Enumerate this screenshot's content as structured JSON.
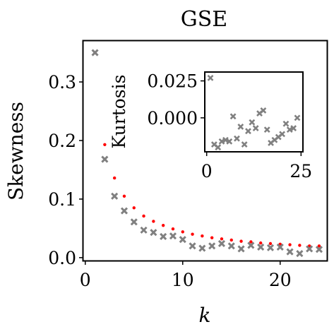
{
  "chart_data": [
    {
      "type": "scatter",
      "title": "GSE",
      "xlabel": "k",
      "ylabel": "Skewness",
      "xlim": [
        -0.2,
        24.8
      ],
      "ylim": [
        -0.005,
        0.37
      ],
      "xticks": [
        0,
        10,
        20
      ],
      "yticks": [
        0.0,
        0.1,
        0.2,
        0.3
      ],
      "tick_labels_x": [
        "0",
        "10",
        "20"
      ],
      "tick_labels_y": [
        "0.0",
        "0.1",
        "0.2",
        "0.3"
      ],
      "grid": false,
      "series": [
        {
          "marker": "dot",
          "color": "#ff0000",
          "x": [
            1,
            2,
            3,
            4,
            5,
            6,
            7,
            8,
            9,
            10,
            11,
            12,
            13,
            14,
            15,
            16,
            17,
            18,
            19,
            20,
            21,
            22,
            23,
            24
          ],
          "y": [
            0.35,
            0.193,
            0.136,
            0.105,
            0.085,
            0.071,
            0.062,
            0.055,
            0.049,
            0.044,
            0.04,
            0.037,
            0.034,
            0.032,
            0.03,
            0.028,
            0.027,
            0.025,
            0.024,
            0.023,
            0.022,
            0.021,
            0.02,
            0.02
          ]
        },
        {
          "marker": "x",
          "color": "#808080",
          "x": [
            1,
            2,
            3,
            4,
            5,
            6,
            7,
            8,
            9,
            10,
            11,
            12,
            13,
            14,
            15,
            16,
            17,
            18,
            19,
            20,
            21,
            22,
            23,
            24
          ],
          "y": [
            0.35,
            0.168,
            0.105,
            0.08,
            0.061,
            0.047,
            0.043,
            0.036,
            0.037,
            0.031,
            0.02,
            0.016,
            0.02,
            0.024,
            0.02,
            0.015,
            0.021,
            0.018,
            0.017,
            0.018,
            0.01,
            0.007,
            0.015,
            0.014
          ]
        }
      ]
    },
    {
      "type": "scatter",
      "title": "",
      "xlabel": "",
      "ylabel": "Kurtosis",
      "xlim": [
        -0.5,
        25.5
      ],
      "ylim": [
        -0.023,
        0.031
      ],
      "xticks": [
        0,
        25
      ],
      "yticks": [
        0.0,
        0.025
      ],
      "tick_labels_x": [
        "0",
        "25"
      ],
      "tick_labels_y": [
        "0.000",
        "0.025"
      ],
      "grid": false,
      "series": [
        {
          "marker": "x",
          "color": "#808080",
          "x": [
            1,
            2,
            3,
            4,
            5,
            6,
            7,
            8,
            9,
            10,
            11,
            12,
            13,
            14,
            15,
            16,
            17,
            18,
            19,
            20,
            21,
            22,
            23,
            24
          ],
          "y": [
            0.027,
            -0.018,
            -0.02,
            -0.016,
            -0.015,
            -0.016,
            0.001,
            -0.014,
            -0.006,
            -0.018,
            -0.009,
            -0.003,
            -0.007,
            0.003,
            0.005,
            -0.008,
            -0.017,
            -0.015,
            -0.013,
            -0.011,
            -0.004,
            -0.008,
            -0.007,
            0.0
          ]
        }
      ]
    }
  ]
}
